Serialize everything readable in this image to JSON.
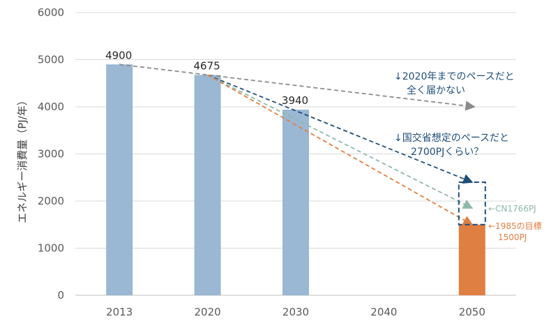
{
  "chart_data": {
    "type": "bar",
    "ylabel": "エネルギー消費量（PJ/年）",
    "ylim": [
      0,
      6000
    ],
    "yticks": [
      0,
      1000,
      2000,
      3000,
      4000,
      5000,
      6000
    ],
    "grid": true,
    "categories": [
      "2013",
      "2020",
      "2030",
      "2040",
      "2050"
    ],
    "values": [
      4900,
      4675,
      3940,
      null,
      1500
    ],
    "data_labels": [
      "4900",
      "4675",
      "3940",
      "",
      ""
    ],
    "bar_colors": [
      "#9ab7d3",
      "#9ab7d3",
      "#9ab7d3",
      "#9ab7d3",
      "#e07f42"
    ],
    "trend_lines": [
      {
        "from": {
          "x": "2013",
          "y": 4900
        },
        "to": {
          "x": "2050",
          "y": 4000
        },
        "color": "#8c8c8c"
      },
      {
        "from": {
          "x": "2020",
          "y": 4675
        },
        "to": {
          "x": "2050",
          "y": 2400
        },
        "color": "#1f4e79"
      },
      {
        "from": {
          "x": "2020",
          "y": 4675
        },
        "to": {
          "x": "2050",
          "y": 1850
        },
        "color": "#8fb9a8"
      },
      {
        "from": {
          "x": "2020",
          "y": 4675
        },
        "to": {
          "x": "2050",
          "y": 1500
        },
        "color": "#e07f42"
      }
    ],
    "target_box": {
      "x": "2050",
      "y_bottom": 1500,
      "y_top": 2400,
      "color": "#1f4e79"
    },
    "annotations": [
      {
        "lines": [
          "↓2020年までのペースだと",
          "全く届かない"
        ],
        "color": "#1f4e79"
      },
      {
        "lines": [
          "↓国交省想定のペースだと",
          "2700PJくらい？"
        ],
        "color": "#1f4e79"
      },
      {
        "lines": [
          "←CN1766PJ"
        ],
        "color": "#8fb9a8"
      },
      {
        "lines": [
          "←1985の目標",
          "1500PJ"
        ],
        "color": "#e07f42"
      }
    ]
  }
}
